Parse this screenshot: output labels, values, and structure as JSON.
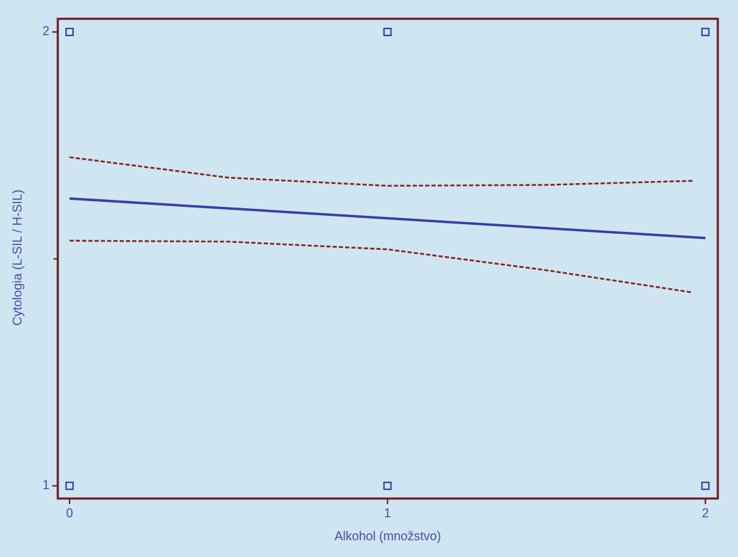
{
  "chart_data": {
    "type": "scatter",
    "xlabel": "Alkohol (množstvo)",
    "ylabel": "Cytologia (L-SIL / H-SIL)",
    "xlim": [
      -0.037,
      2.039
    ],
    "ylim": [
      0.972,
      2.029
    ],
    "xticks": [
      0,
      1,
      2
    ],
    "yticks": [
      1,
      2
    ],
    "yminorticks": [
      1.5
    ],
    "background": "#cfe6f2",
    "frame_color": "#6b1a1a",
    "text_color": "#4a4aa8",
    "points": {
      "x": [
        0,
        1,
        2,
        0,
        1,
        2
      ],
      "y": [
        1,
        1,
        1,
        2,
        2,
        2
      ],
      "color": "#3a3aa0"
    },
    "lines": [
      {
        "x": [
          0,
          2
        ],
        "y": [
          1.633,
          1.546
        ],
        "color": "#3c3ca8",
        "dashed": false
      },
      {
        "x": [
          0,
          0.5,
          1,
          1.5,
          1.96
        ],
        "y": [
          1.724,
          1.679,
          1.661,
          1.663,
          1.672
        ],
        "color": "#8b1e1e",
        "dashed": true
      },
      {
        "x": [
          0,
          0.5,
          1,
          1.5,
          1.96
        ],
        "y": [
          1.54,
          1.538,
          1.521,
          1.475,
          1.426
        ],
        "color": "#8b1e1e",
        "dashed": true
      }
    ]
  }
}
